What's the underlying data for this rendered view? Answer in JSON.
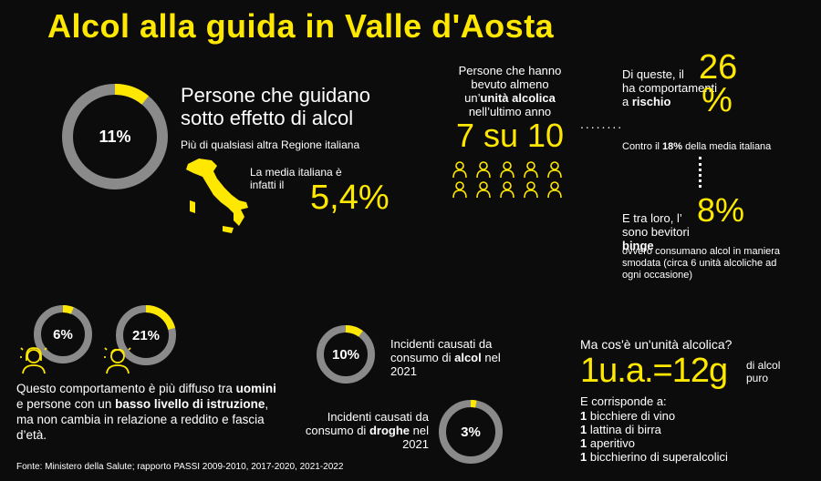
{
  "title": "Alcol alla guida in Valle d'Aosta",
  "colors": {
    "accent": "#ffe800",
    "ring": "#8a8a8a",
    "background": "#0c0c0c"
  },
  "drivers": {
    "ring_value": "11%",
    "ring_fraction": 0.11,
    "heading": "Persone che guidano sotto effetto di alcol",
    "subheading": "Più di qualsiasi altra Regione italiana",
    "italy_label": "La media italiana è infatti il",
    "italy_value": "5,4%"
  },
  "drinkers": {
    "label_pre": "Persone che hanno bevuto almeno un’",
    "label_bold": "unità alcolica",
    "label_post": "nell’ultimo anno",
    "value": "7 su 10",
    "people_total": 10,
    "people_highlighted": 7
  },
  "risk": {
    "label_pre": "Di queste, il",
    "label_post": "ha comportamenti a",
    "label_bold": "rischio",
    "value": "26 %",
    "compare_pre": "Contro il",
    "compare_bold": "18%",
    "compare_post": "della media italiana"
  },
  "binge": {
    "label_pre": "E tra loro, l’",
    "value": "8%",
    "label_line2": "sono bevitori",
    "label_bold": "binge",
    "note": "ovvero consumano alcol in maniera smodata (circa 6 unità alcoliche ad ogni occasione)"
  },
  "education": {
    "ring1_value": "6%",
    "ring1_fraction": 0.06,
    "ring2_value": "21%",
    "ring2_fraction": 0.21,
    "text_pre": "Questo comportamento è più diffuso tra",
    "text_bold1": "uomini",
    "text_mid": "e persone con un",
    "text_bold2": "basso livello di istruzione",
    "text_post": ", ma non cambia in relazione a reddito e fascia d’età."
  },
  "accidents": {
    "alcol_value": "10%",
    "alcol_fraction": 0.1,
    "alcol_label_pre": "Incidenti causati da consumo di",
    "alcol_label_bold": "alcol",
    "alcol_label_post": "nel 2021",
    "droghe_value": "3%",
    "droghe_fraction": 0.03,
    "droghe_label_pre": "Incidenti causati da consumo di",
    "droghe_label_bold": "droghe",
    "droghe_label_post": "nel 2021"
  },
  "unit": {
    "question": "Ma cos'è un'unità alcolica?",
    "equation": "1u.a.=12g",
    "equation_suffix": "di alcol puro",
    "corresponds": "E corrisponde a:",
    "items": [
      {
        "qty": "1",
        "text": "bicchiere di vino"
      },
      {
        "qty": "1",
        "text": "lattina di birra"
      },
      {
        "qty": "1",
        "text": "aperitivo"
      },
      {
        "qty": "1",
        "text": "bicchierino di superalcolici"
      }
    ]
  },
  "source": "Fonte: Ministero della Salute; rapporto PASSI 2009-2010, 2017-2020, 2021-2022"
}
